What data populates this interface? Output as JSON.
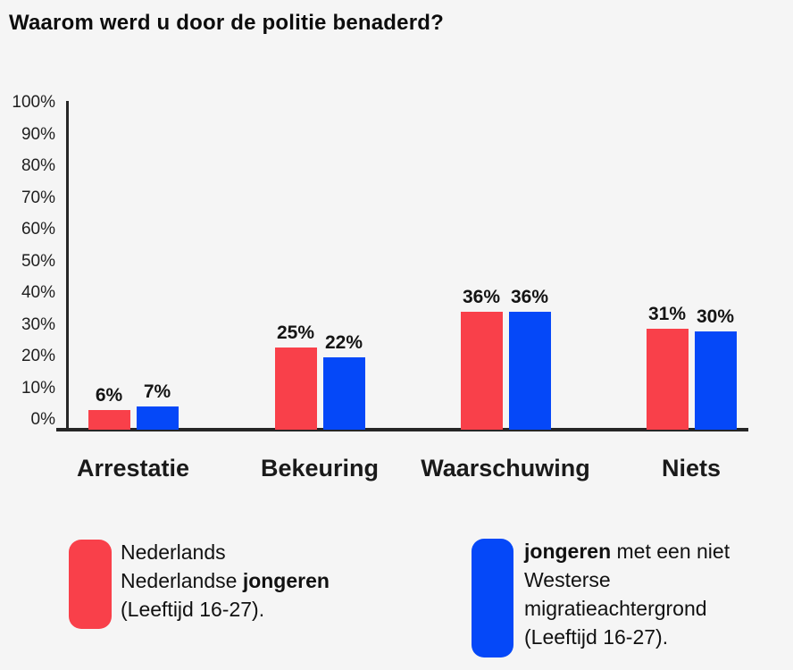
{
  "title": "Waarom werd u door de politie benaderd?",
  "colors": {
    "series_red": "#f9404a",
    "series_blue": "#0548f8",
    "background": "#f5f5f5",
    "axis": "#262626",
    "text": "#111111"
  },
  "chart_data": {
    "type": "bar",
    "title": "Waarom werd u door de politie benaderd?",
    "categories": [
      "Arrestatie",
      "Bekeuring",
      "Waarschuwing",
      "Niets"
    ],
    "series": [
      {
        "name": "Nederlands Nederlandse jongeren (Leeftijd 16-27).",
        "color": "#f9404a",
        "values": [
          6,
          25,
          36,
          31
        ]
      },
      {
        "name": "jongeren met een niet Westerse migratieachtergrond (Leeftijd 16-27).",
        "color": "#0548f8",
        "values": [
          7,
          22,
          36,
          30
        ]
      }
    ],
    "value_labels": [
      [
        "6%",
        "7%"
      ],
      [
        "25%",
        "22%"
      ],
      [
        "36%",
        "36%"
      ],
      [
        "31%",
        "30%"
      ]
    ],
    "xlabel": "",
    "ylabel": "",
    "ylim": [
      0,
      100
    ],
    "yticks": [
      "100%",
      "90%",
      "80%",
      "70%",
      "60%",
      "50%",
      "40%",
      "30%",
      "20%",
      "10%",
      "0%"
    ],
    "grid": false,
    "legend_position": "bottom"
  },
  "legend": {
    "left": {
      "color": "#f9404a",
      "lines": [
        [
          {
            "t": "Nederlands",
            "b": false
          }
        ],
        [
          {
            "t": "Nederlandse ",
            "b": false
          },
          {
            "t": "jongeren",
            "b": true
          }
        ],
        [
          {
            "t": "(Leeftijd 16-27).",
            "b": false
          }
        ]
      ]
    },
    "right": {
      "color": "#0548f8",
      "lines": [
        [
          {
            "t": "jongeren",
            "b": true
          },
          {
            "t": " met een niet",
            "b": false
          }
        ],
        [
          {
            "t": "Westerse",
            "b": false
          }
        ],
        [
          {
            "t": "migratieachtergrond",
            "b": false
          }
        ],
        [
          {
            "t": "(Leeftijd 16-27).",
            "b": false
          }
        ]
      ]
    }
  }
}
